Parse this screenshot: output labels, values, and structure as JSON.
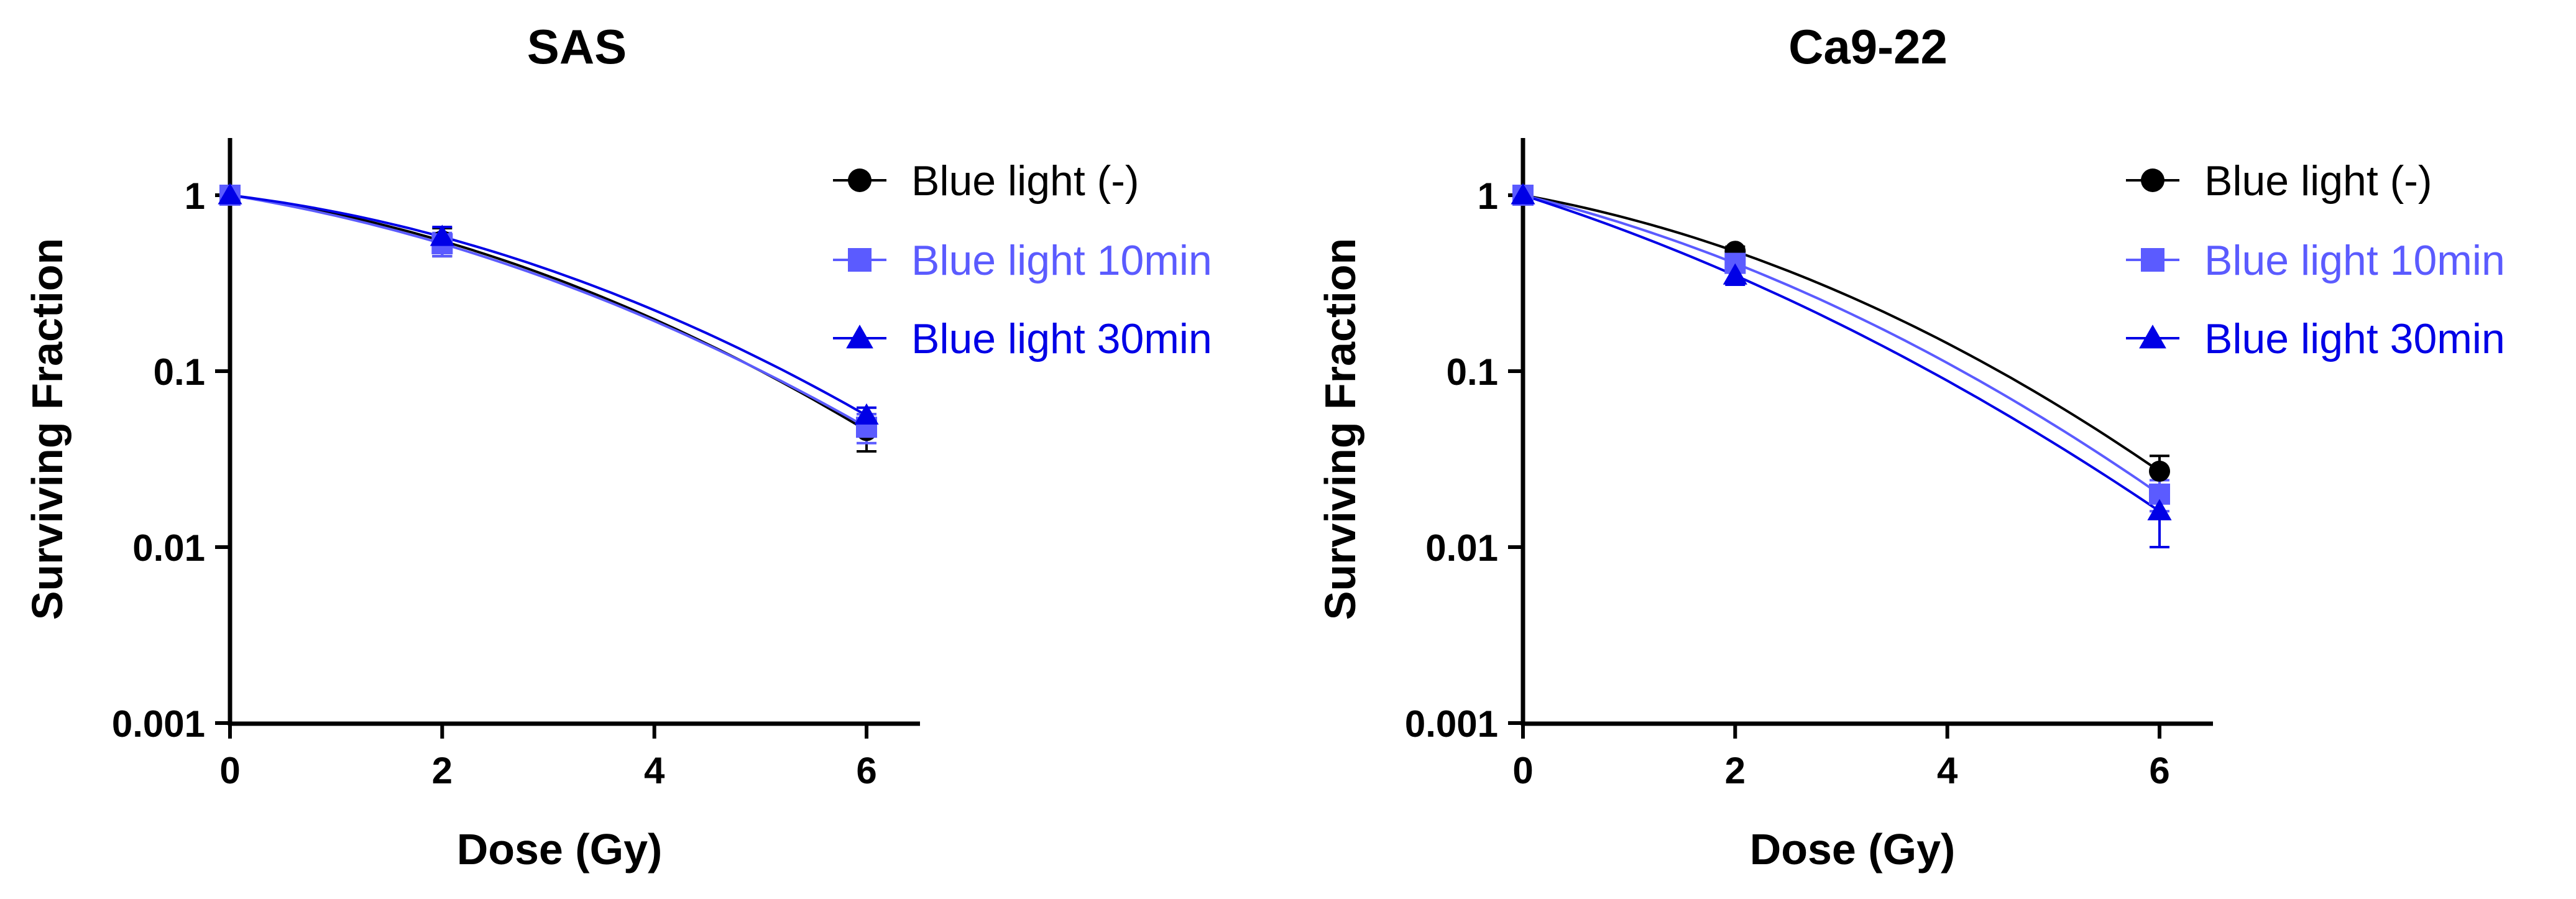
{
  "chart_data": [
    {
      "type": "scatter",
      "title": "SAS",
      "xlabel": "Dose (Gy)",
      "ylabel": "Surviving Fraction",
      "xlim": [
        0,
        6.5
      ],
      "ylim": [
        0.001,
        2
      ],
      "yscale": "log",
      "xticks": [
        0,
        2,
        4,
        6
      ],
      "yticks": [
        0.001,
        0.01,
        0.1,
        1
      ],
      "ytick_labels": [
        "0.001",
        "0.01",
        "0.1",
        "1"
      ],
      "legend_position": "top-right",
      "x": [
        0,
        2,
        6
      ],
      "series": [
        {
          "name": "Blue light (-)",
          "color": "#000000",
          "marker": "circle",
          "values": [
            1.0,
            0.55,
            0.046
          ],
          "errors": [
            0.02,
            0.1,
            0.011
          ]
        },
        {
          "name": "Blue light 10min",
          "color": "#5b5bff",
          "marker": "square",
          "values": [
            1.0,
            0.53,
            0.048
          ],
          "errors": [
            0.02,
            0.08,
            0.009
          ]
        },
        {
          "name": "Blue light 30min",
          "color": "#0000e6",
          "marker": "triangle",
          "values": [
            1.0,
            0.58,
            0.056
          ],
          "errors": [
            0.02,
            0.08,
            0.006
          ]
        }
      ]
    },
    {
      "type": "scatter",
      "title": "Ca9-22",
      "xlabel": "Dose (Gy)",
      "ylabel": "Surviving Fraction",
      "xlim": [
        0,
        6.5
      ],
      "ylim": [
        0.001,
        2
      ],
      "yscale": "log",
      "xticks": [
        0,
        2,
        4,
        6
      ],
      "yticks": [
        0.001,
        0.01,
        0.1,
        1
      ],
      "ytick_labels": [
        "0.001",
        "0.01",
        "0.1",
        "1"
      ],
      "legend_position": "top-right",
      "x": [
        0,
        2,
        6
      ],
      "series": [
        {
          "name": "Blue light (-)",
          "color": "#000000",
          "marker": "circle",
          "values": [
            1.0,
            0.48,
            0.027
          ],
          "errors": [
            0.02,
            0.03,
            0.006
          ]
        },
        {
          "name": "Blue light 10min",
          "color": "#5b5bff",
          "marker": "square",
          "values": [
            1.0,
            0.41,
            0.02
          ],
          "errors": [
            0.02,
            0.04,
            0.004
          ]
        },
        {
          "name": "Blue light 30min",
          "color": "#0000e6",
          "marker": "triangle",
          "values": [
            1.0,
            0.35,
            0.016
          ],
          "errors": [
            0.02,
            0.04,
            0.006
          ]
        }
      ]
    }
  ]
}
